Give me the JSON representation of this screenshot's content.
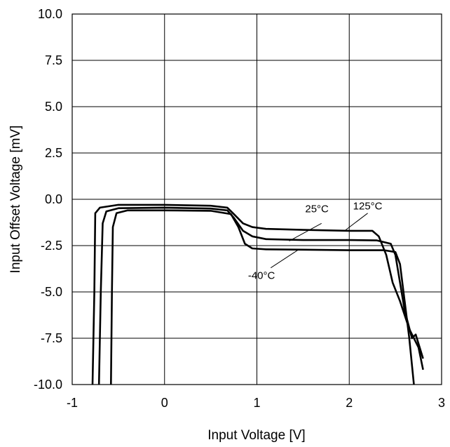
{
  "chart_data": {
    "type": "line",
    "xlabel": "Input Voltage [V]",
    "ylabel": "Input Offset Voltage [mV]",
    "xlim": [
      -1,
      3
    ],
    "ylim": [
      -10,
      10
    ],
    "x_ticks": [
      "-1",
      "0",
      "1",
      "2",
      "3"
    ],
    "y_ticks": [
      "10.0",
      "7.5",
      "5.0",
      "2.5",
      "0.0",
      "-2.5",
      "-5.0",
      "-7.5",
      "-10.0"
    ],
    "grid": true,
    "series": [
      {
        "name": "25°C",
        "points": [
          [
            -0.71,
            -10
          ],
          [
            -0.69,
            -5
          ],
          [
            -0.67,
            -1.3
          ],
          [
            -0.63,
            -0.65
          ],
          [
            -0.5,
            -0.48
          ],
          [
            0,
            -0.45
          ],
          [
            0.5,
            -0.5
          ],
          [
            0.68,
            -0.6
          ],
          [
            0.75,
            -1.0
          ],
          [
            0.85,
            -1.7
          ],
          [
            0.95,
            -2.0
          ],
          [
            1.1,
            -2.15
          ],
          [
            1.5,
            -2.2
          ],
          [
            2.0,
            -2.2
          ],
          [
            2.3,
            -2.22
          ],
          [
            2.45,
            -2.4
          ],
          [
            2.5,
            -3.0
          ],
          [
            2.55,
            -4.5
          ],
          [
            2.6,
            -6.0
          ],
          [
            2.68,
            -7.5
          ],
          [
            2.72,
            -7.3
          ],
          [
            2.8,
            -8.6
          ]
        ],
        "color": "#000000"
      },
      {
        "name": "125°C",
        "points": [
          [
            -0.78,
            -10
          ],
          [
            -0.76,
            -5
          ],
          [
            -0.75,
            -0.75
          ],
          [
            -0.7,
            -0.45
          ],
          [
            -0.5,
            -0.3
          ],
          [
            0,
            -0.3
          ],
          [
            0.5,
            -0.35
          ],
          [
            0.68,
            -0.45
          ],
          [
            0.75,
            -0.8
          ],
          [
            0.85,
            -1.3
          ],
          [
            0.95,
            -1.5
          ],
          [
            1.1,
            -1.6
          ],
          [
            1.5,
            -1.65
          ],
          [
            2.0,
            -1.7
          ],
          [
            2.25,
            -1.7
          ],
          [
            2.32,
            -2.0
          ],
          [
            2.4,
            -3.0
          ],
          [
            2.47,
            -4.5
          ],
          [
            2.55,
            -5.5
          ],
          [
            2.65,
            -7.0
          ],
          [
            2.75,
            -8.0
          ],
          [
            2.8,
            -9.2
          ]
        ],
        "color": "#000000"
      },
      {
        "name": "-40°C",
        "points": [
          [
            -0.58,
            -10
          ],
          [
            -0.57,
            -5
          ],
          [
            -0.56,
            -1.5
          ],
          [
            -0.52,
            -0.75
          ],
          [
            -0.4,
            -0.6
          ],
          [
            0,
            -0.6
          ],
          [
            0.5,
            -0.62
          ],
          [
            0.72,
            -0.8
          ],
          [
            0.8,
            -1.5
          ],
          [
            0.87,
            -2.4
          ],
          [
            0.95,
            -2.65
          ],
          [
            1.1,
            -2.7
          ],
          [
            1.5,
            -2.72
          ],
          [
            2.0,
            -2.75
          ],
          [
            2.38,
            -2.75
          ],
          [
            2.5,
            -2.85
          ],
          [
            2.55,
            -3.5
          ],
          [
            2.6,
            -5.5
          ],
          [
            2.65,
            -7.5
          ],
          [
            2.7,
            -10
          ]
        ],
        "color": "#000000"
      }
    ],
    "annotations": [
      {
        "text": "25°C",
        "x": 1.65,
        "y": -0.7
      },
      {
        "text": "125°C",
        "x": 2.2,
        "y": -0.55
      },
      {
        "text": "-40°C",
        "x": 1.05,
        "y": -4.3
      }
    ]
  }
}
